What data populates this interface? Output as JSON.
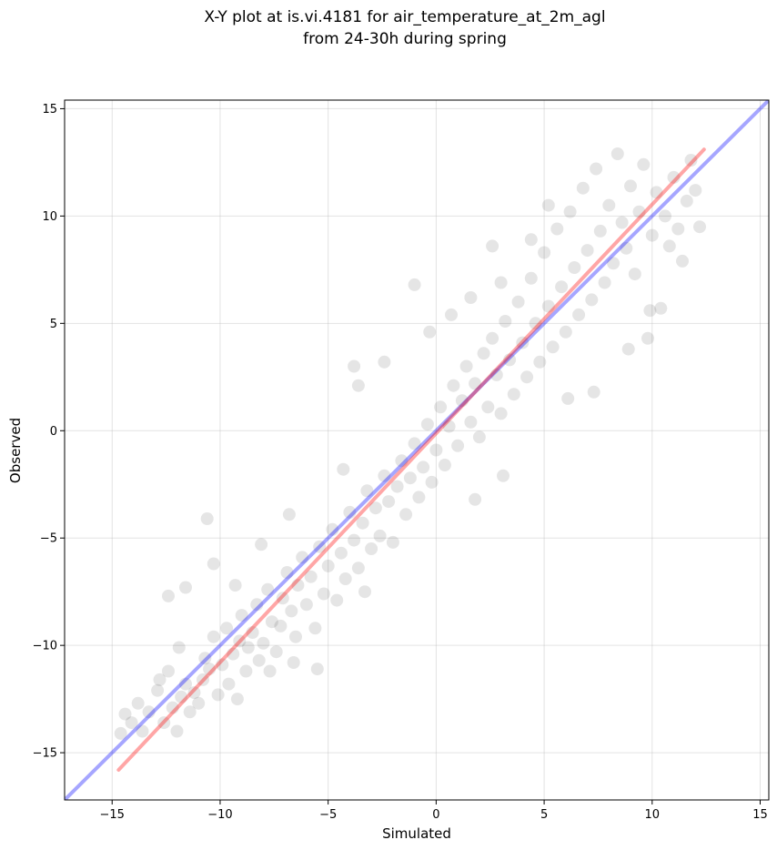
{
  "chart_data": {
    "type": "scatter",
    "title": "X-Y plot at is.vi.4181 for air_temperature_at_2m_agl",
    "subtitle": "from 24-30h during spring",
    "xlabel": "Simulated",
    "ylabel": "Observed",
    "xlim": [
      -17.2,
      15.4
    ],
    "ylim": [
      -17.2,
      15.4
    ],
    "xticks": [
      -15,
      -10,
      -5,
      0,
      5,
      10,
      15
    ],
    "yticks": [
      -15,
      -10,
      -5,
      0,
      5,
      10,
      15
    ],
    "xtick_labels": [
      "−15",
      "−10",
      "−5",
      "0",
      "5",
      "10",
      "15"
    ],
    "ytick_labels": [
      "−15",
      "−10",
      "−5",
      "0",
      "5",
      "10",
      "15"
    ],
    "grid": true,
    "legend": false,
    "series": [
      {
        "type": "scatter",
        "color": "#000000",
        "opacity": 0.1,
        "points": [
          [
            -14.6,
            -14.1
          ],
          [
            -14.4,
            -13.2
          ],
          [
            -14.1,
            -13.6
          ],
          [
            -13.8,
            -12.7
          ],
          [
            -13.3,
            -13.1
          ],
          [
            -12.9,
            -12.1
          ],
          [
            -12.6,
            -13.6
          ],
          [
            -12.4,
            -11.2
          ],
          [
            -12.2,
            -12.9
          ],
          [
            -12.0,
            -14.0
          ],
          [
            -11.8,
            -12.4
          ],
          [
            -11.6,
            -11.8
          ],
          [
            -11.4,
            -13.1
          ],
          [
            -11.2,
            -12.2
          ],
          [
            -11.0,
            -12.7
          ],
          [
            -10.8,
            -11.6
          ],
          [
            -10.7,
            -10.6
          ],
          [
            -10.5,
            -11.1
          ],
          [
            -10.3,
            -9.6
          ],
          [
            -10.1,
            -12.3
          ],
          [
            -9.9,
            -10.9
          ],
          [
            -9.7,
            -9.2
          ],
          [
            -9.6,
            -11.8
          ],
          [
            -9.4,
            -10.4
          ],
          [
            -9.2,
            -12.5
          ],
          [
            -9.1,
            -9.8
          ],
          [
            -9.0,
            -8.6
          ],
          [
            -8.8,
            -11.2
          ],
          [
            -8.7,
            -10.1
          ],
          [
            -8.5,
            -9.4
          ],
          [
            -8.3,
            -8.1
          ],
          [
            -8.2,
            -10.7
          ],
          [
            -8.0,
            -9.9
          ],
          [
            -7.8,
            -7.4
          ],
          [
            -7.6,
            -8.9
          ],
          [
            -7.4,
            -10.3
          ],
          [
            -7.2,
            -9.1
          ],
          [
            -7.1,
            -7.8
          ],
          [
            -6.9,
            -6.6
          ],
          [
            -6.7,
            -8.4
          ],
          [
            -6.5,
            -9.6
          ],
          [
            -6.4,
            -7.2
          ],
          [
            -6.2,
            -5.9
          ],
          [
            -6.0,
            -8.1
          ],
          [
            -5.8,
            -6.8
          ],
          [
            -5.6,
            -9.2
          ],
          [
            -5.4,
            -5.4
          ],
          [
            -5.2,
            -7.6
          ],
          [
            -5.0,
            -6.3
          ],
          [
            -4.8,
            -4.6
          ],
          [
            -4.6,
            -7.9
          ],
          [
            -4.4,
            -5.7
          ],
          [
            -4.2,
            -6.9
          ],
          [
            -4.0,
            -3.8
          ],
          [
            -3.8,
            -5.1
          ],
          [
            -3.6,
            -6.4
          ],
          [
            -3.4,
            -4.3
          ],
          [
            -3.2,
            -2.8
          ],
          [
            -3.0,
            -5.5
          ],
          [
            -2.8,
            -3.6
          ],
          [
            -2.6,
            -4.9
          ],
          [
            -2.4,
            -2.1
          ],
          [
            -2.2,
            -3.3
          ],
          [
            -2.0,
            -5.2
          ],
          [
            -1.8,
            -2.6
          ],
          [
            -1.6,
            -1.4
          ],
          [
            -1.4,
            -3.9
          ],
          [
            -1.2,
            -2.2
          ],
          [
            -1.0,
            -0.6
          ],
          [
            -0.8,
            -3.1
          ],
          [
            -0.6,
            -1.7
          ],
          [
            -0.4,
            0.3
          ],
          [
            -0.2,
            -2.4
          ],
          [
            0.0,
            -0.9
          ],
          [
            0.2,
            1.1
          ],
          [
            0.4,
            -1.6
          ],
          [
            0.6,
            0.2
          ],
          [
            0.8,
            2.1
          ],
          [
            1.0,
            -0.7
          ],
          [
            1.2,
            1.4
          ],
          [
            1.4,
            3.0
          ],
          [
            1.6,
            0.4
          ],
          [
            1.8,
            2.2
          ],
          [
            2.0,
            -0.3
          ],
          [
            2.2,
            3.6
          ],
          [
            2.4,
            1.1
          ],
          [
            2.6,
            4.3
          ],
          [
            2.8,
            2.6
          ],
          [
            3.0,
            0.8
          ],
          [
            3.2,
            5.1
          ],
          [
            3.4,
            3.3
          ],
          [
            3.6,
            1.7
          ],
          [
            3.8,
            6.0
          ],
          [
            4.0,
            4.1
          ],
          [
            4.2,
            2.5
          ],
          [
            4.4,
            7.1
          ],
          [
            4.6,
            5.0
          ],
          [
            4.8,
            3.2
          ],
          [
            5.0,
            8.3
          ],
          [
            5.2,
            5.8
          ],
          [
            5.4,
            3.9
          ],
          [
            5.6,
            9.4
          ],
          [
            5.8,
            6.7
          ],
          [
            6.0,
            4.6
          ],
          [
            6.2,
            10.2
          ],
          [
            6.4,
            7.6
          ],
          [
            6.6,
            5.4
          ],
          [
            6.8,
            11.3
          ],
          [
            7.0,
            8.4
          ],
          [
            7.2,
            6.1
          ],
          [
            7.4,
            12.2
          ],
          [
            7.6,
            9.3
          ],
          [
            7.8,
            6.9
          ],
          [
            8.0,
            10.5
          ],
          [
            8.2,
            7.8
          ],
          [
            8.4,
            12.9
          ],
          [
            8.6,
            9.7
          ],
          [
            8.8,
            8.5
          ],
          [
            9.0,
            11.4
          ],
          [
            9.2,
            7.3
          ],
          [
            9.4,
            10.2
          ],
          [
            9.6,
            12.4
          ],
          [
            9.8,
            4.3
          ],
          [
            10.0,
            9.1
          ],
          [
            10.2,
            11.1
          ],
          [
            10.4,
            5.7
          ],
          [
            10.6,
            10.0
          ],
          [
            10.8,
            8.6
          ],
          [
            11.0,
            11.8
          ],
          [
            11.2,
            9.4
          ],
          [
            11.4,
            7.9
          ],
          [
            11.6,
            10.7
          ],
          [
            11.8,
            12.6
          ],
          [
            12.0,
            11.2
          ],
          [
            12.2,
            9.5
          ],
          [
            -10.6,
            -4.1
          ],
          [
            -10.3,
            -6.2
          ],
          [
            -11.6,
            -7.3
          ],
          [
            -12.4,
            -7.7
          ],
          [
            -1.0,
            6.8
          ],
          [
            1.6,
            6.2
          ],
          [
            7.3,
            1.8
          ],
          [
            6.1,
            1.5
          ],
          [
            9.9,
            5.6
          ],
          [
            8.9,
            3.8
          ],
          [
            -5.5,
            -11.1
          ],
          [
            -3.3,
            -7.5
          ],
          [
            -3.8,
            3.0
          ],
          [
            -2.4,
            3.2
          ],
          [
            1.8,
            -3.2
          ],
          [
            3.1,
            -2.1
          ],
          [
            -3.6,
            2.1
          ],
          [
            4.4,
            8.9
          ],
          [
            3.0,
            6.9
          ],
          [
            -6.8,
            -3.9
          ],
          [
            -8.1,
            -5.3
          ],
          [
            -6.6,
            -10.8
          ],
          [
            -7.7,
            -11.2
          ],
          [
            -9.3,
            -7.2
          ],
          [
            -11.9,
            -10.1
          ],
          [
            -12.8,
            -11.6
          ],
          [
            -13.6,
            -14.0
          ],
          [
            -4.3,
            -1.8
          ],
          [
            2.6,
            8.6
          ],
          [
            5.2,
            10.5
          ],
          [
            0.7,
            5.4
          ],
          [
            -0.3,
            4.6
          ]
        ]
      }
    ],
    "lines": [
      {
        "name": "",
        "color": "#0000ff",
        "opacity": 0.35,
        "x": [
          -17.2,
          15.4
        ],
        "y": [
          -17.2,
          15.4
        ]
      },
      {
        "name": "",
        "color": "#ff0000",
        "opacity": 0.35,
        "x": [
          -14.7,
          12.4
        ],
        "y": [
          -15.8,
          13.1
        ]
      }
    ]
  }
}
